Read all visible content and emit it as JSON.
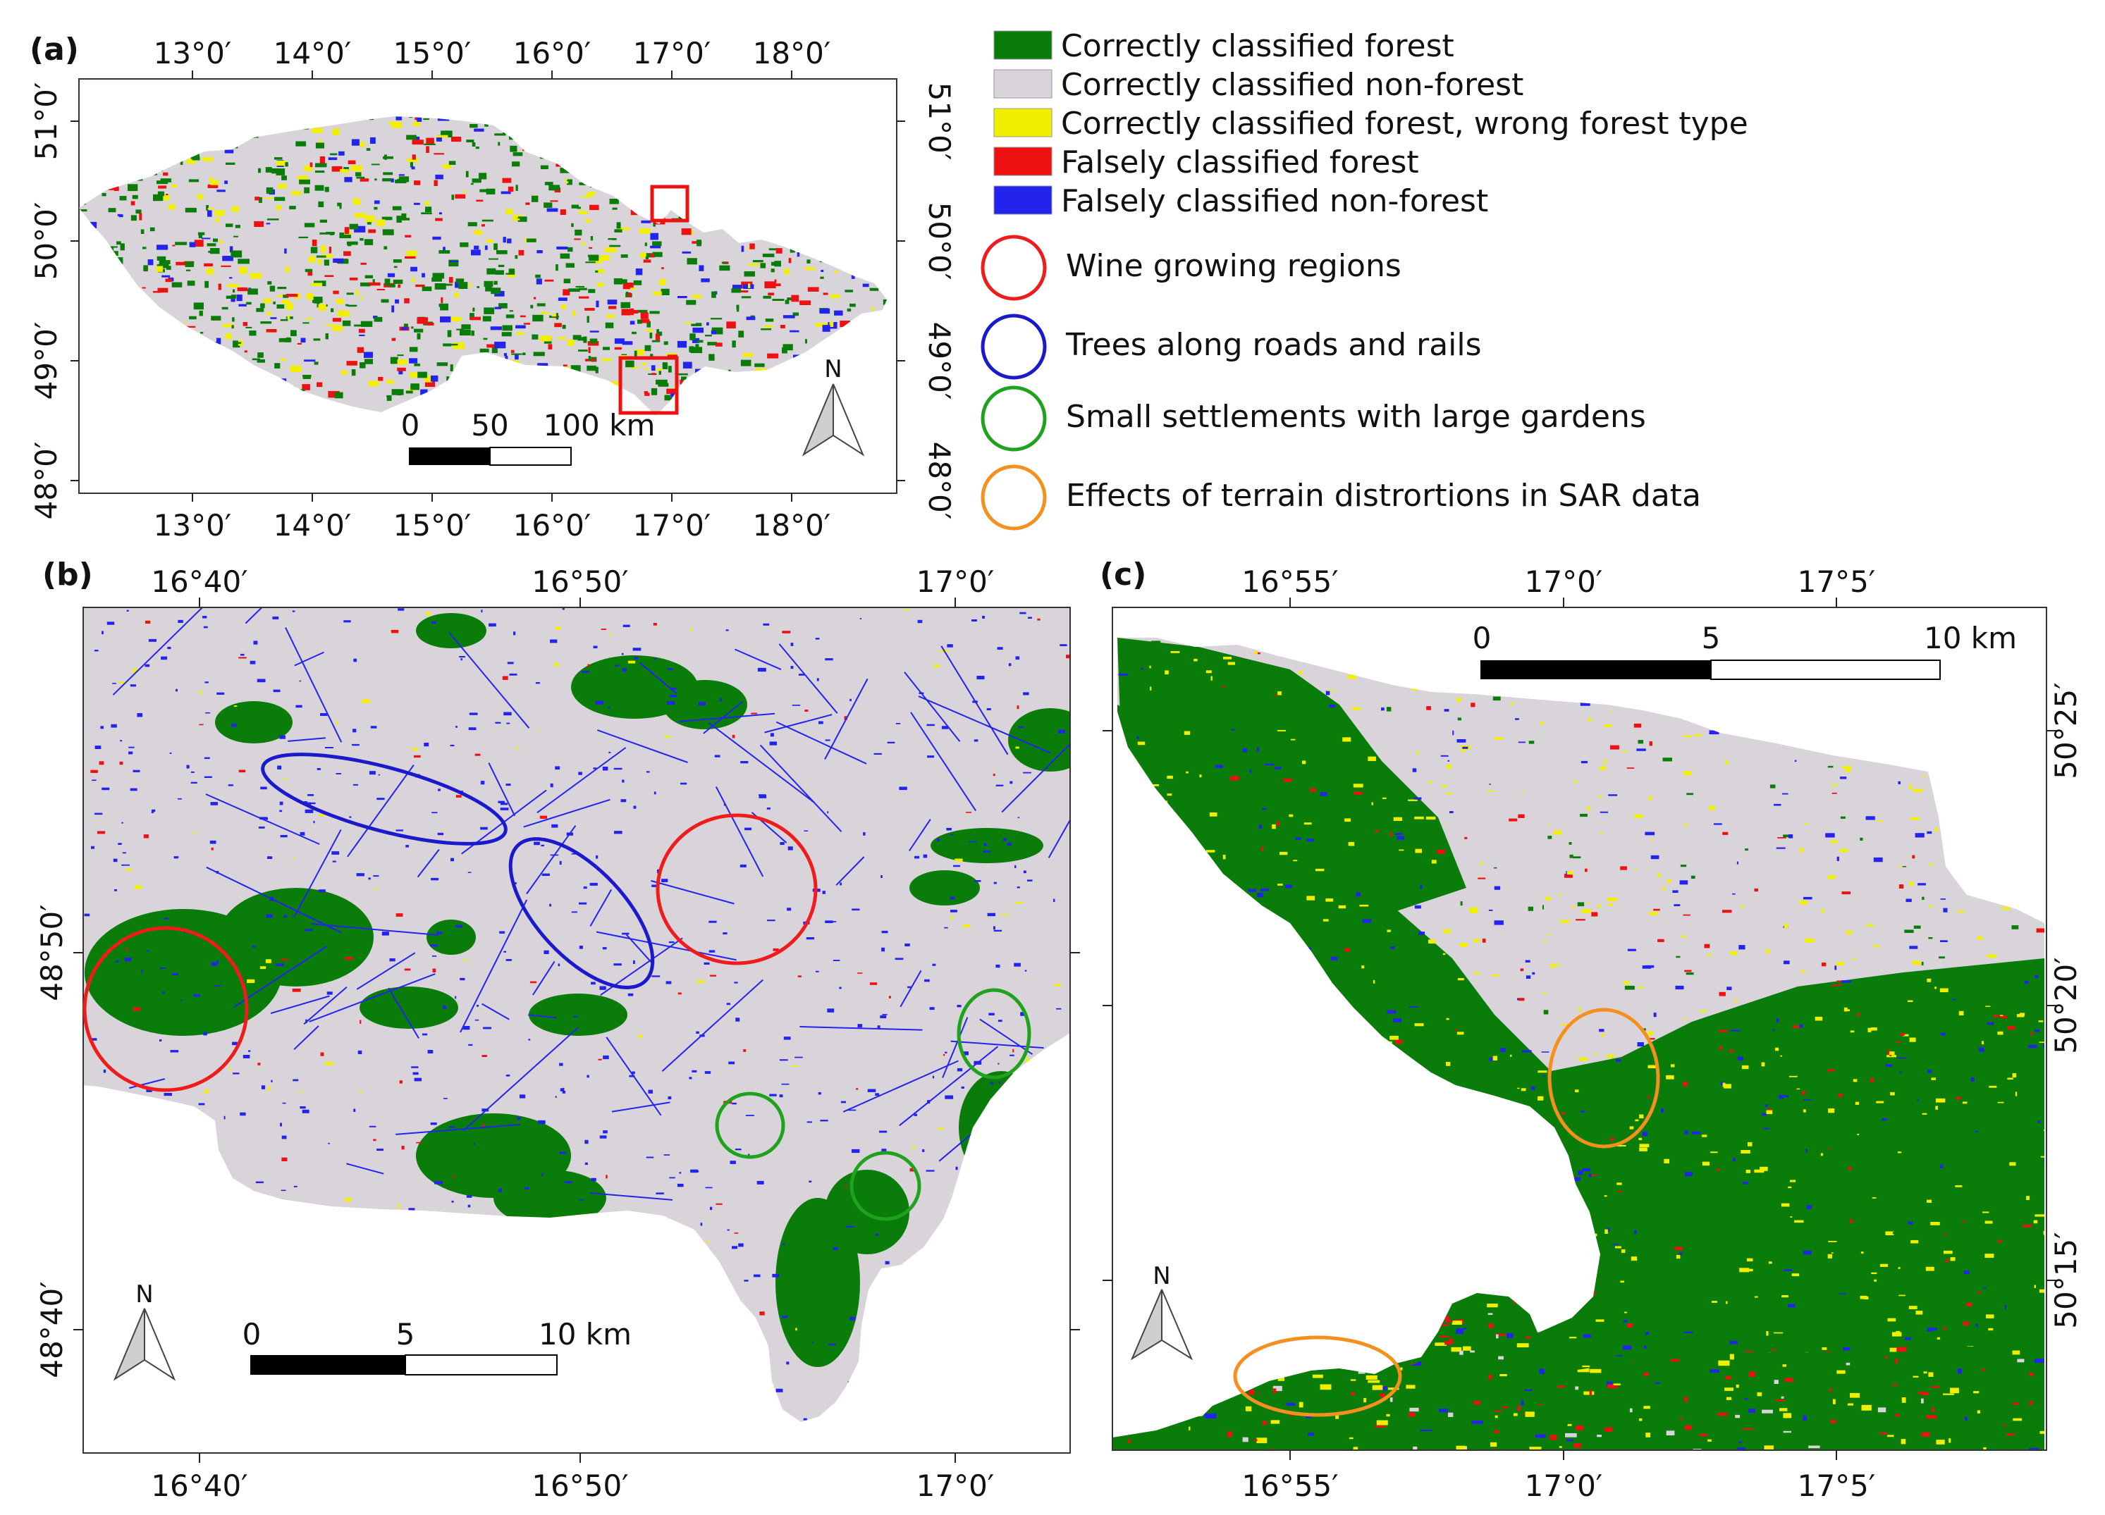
{
  "colors": {
    "forest": "#0a7c0a",
    "nonforest": "#d9d4d9",
    "wrongtype": "#f2ee00",
    "falseforest": "#ee1111",
    "falsenonforest": "#2323ee",
    "wine": "#ee1c1c",
    "roads": "#1a1acc",
    "settlements": "#1fa31f",
    "terrain": "#f5901e"
  },
  "legend": {
    "items": [
      {
        "label": "Correctly classified forest",
        "color": "#0a7c0a"
      },
      {
        "label": "Correctly classified non-forest",
        "color": "#d9d4d9"
      },
      {
        "label": "Correctly classified forest, wrong forest type",
        "color": "#f2ee00"
      },
      {
        "label": "Falsely classified forest",
        "color": "#ee1111"
      },
      {
        "label": "Falsely classified non-forest",
        "color": "#2323ee"
      }
    ],
    "circles": [
      {
        "label": "Wine growing regions",
        "color": "#ee1c1c"
      },
      {
        "label": "Trees along roads and rails",
        "color": "#1a1acc"
      },
      {
        "label": "Small settlements with large gardens",
        "color": "#1fa31f"
      },
      {
        "label": "Effects of terrain distrortions in SAR data",
        "color": "#f5901e"
      }
    ]
  },
  "panel_a": {
    "tag": "(a)",
    "lon_labels": [
      "13°0′",
      "14°0′",
      "15°0′",
      "16°0′",
      "17°0′",
      "18°0′"
    ],
    "lat_labels": [
      "51°0′",
      "50°0′",
      "49°0′",
      "48°0′"
    ],
    "scale": {
      "t0": "0",
      "t1": "50",
      "t2": "100 km"
    },
    "north": "N"
  },
  "panel_b": {
    "tag": "(b)",
    "lon_labels": [
      "16°40′",
      "16°50′",
      "17°0′"
    ],
    "lat_labels": [
      "48°50′",
      "48°40′"
    ],
    "scale": {
      "t0": "0",
      "t1": "5",
      "t2": "10 km"
    },
    "north": "N"
  },
  "panel_c": {
    "tag": "(c)",
    "lon_labels": [
      "16°55′",
      "17°0′",
      "17°5′"
    ],
    "lat_labels": [
      "50°25′",
      "50°20′",
      "50°15′"
    ],
    "scale": {
      "t0": "0",
      "t1": "5",
      "t2": "10 km"
    },
    "north": "N"
  }
}
